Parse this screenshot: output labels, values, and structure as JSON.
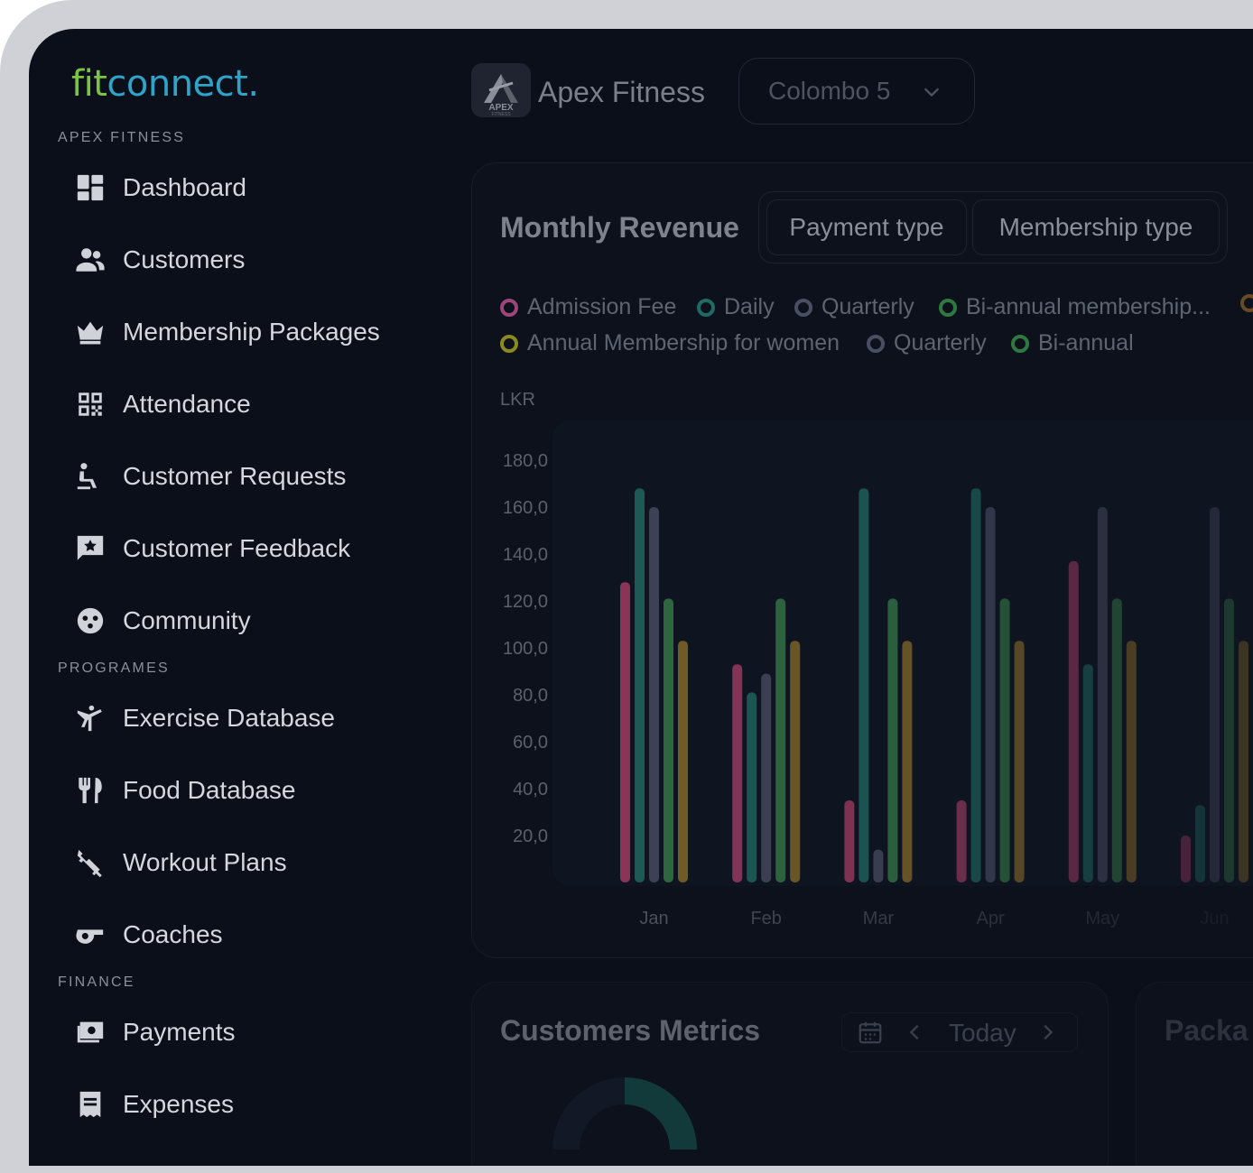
{
  "sidebar": {
    "logo_fit": "fit",
    "logo_connect": "connect.",
    "sections": [
      {
        "label": "APEX FITNESS"
      },
      {
        "label": "PROGRAMES"
      },
      {
        "label": "FINANCE"
      }
    ],
    "items": [
      {
        "label": "Dashboard",
        "icon": "dashboard-icon"
      },
      {
        "label": "Customers",
        "icon": "people-icon"
      },
      {
        "label": "Membership Packages",
        "icon": "crown-icon"
      },
      {
        "label": "Attendance",
        "icon": "qr-code-icon"
      },
      {
        "label": "Customer Requests",
        "icon": "seat-person-icon"
      },
      {
        "label": "Customer Feedback",
        "icon": "feedback-star-icon"
      },
      {
        "label": "Community",
        "icon": "community-icon"
      },
      {
        "label": "Exercise Database",
        "icon": "exercise-icon"
      },
      {
        "label": "Food Database",
        "icon": "cutlery-icon"
      },
      {
        "label": "Workout Plans",
        "icon": "dumbbell-icon"
      },
      {
        "label": "Coaches",
        "icon": "whistle-icon"
      },
      {
        "label": "Payments",
        "icon": "cash-icon"
      },
      {
        "label": "Expenses",
        "icon": "receipt-icon"
      }
    ]
  },
  "header": {
    "brand_name": "Apex Fitness",
    "brand_logo_text": "APEX",
    "brand_logo_sub": "FITNESS",
    "branch": "Colombo 5"
  },
  "revenue": {
    "title": "Monthly Revenue",
    "tabs": [
      "Payment type",
      "Membership type"
    ],
    "unit": "LKR"
  },
  "metrics": {
    "title": "Customers Metrics",
    "date_label": "Today",
    "packages_title": "Packa"
  },
  "colors": {
    "admission": "#7a2d4d",
    "daily": "#1a4a48",
    "quarterly": "#3b3e52",
    "biannual_membership": "#2b5a3a",
    "annual_women": "#6a5a22",
    "quarterly_2": "#3b3e52",
    "biannual": "#2b5a3a",
    "extra": "#6a4a22"
  },
  "chart_data": {
    "type": "bar",
    "ylabel": "LKR",
    "ylim": [
      0,
      180
    ],
    "y_ticks": [
      "20,0",
      "40,0",
      "60,0",
      "80,0",
      "100,0",
      "120,0",
      "140,0",
      "160,0",
      "180,0"
    ],
    "categories": [
      "Jan",
      "Feb",
      "Mar",
      "Apr",
      "May",
      "Jun"
    ],
    "legend": [
      {
        "name": "Admission Fee",
        "color": "#a0457a"
      },
      {
        "name": "Daily",
        "color": "#1f6a66"
      },
      {
        "name": "Quarterly",
        "color": "#4a4e62"
      },
      {
        "name": "Bi-annual membership...",
        "color": "#2e7a3e"
      },
      {
        "name": "Annual Membership for women",
        "color": "#8a8a1e"
      },
      {
        "name": "Quarterly",
        "color": "#4a4e62"
      },
      {
        "name": "Bi-annual",
        "color": "#2e7a3e"
      }
    ],
    "series": [
      {
        "name": "Admission Fee",
        "color": "#8a3558",
        "values": [
          128,
          93,
          35,
          35,
          137,
          20
        ]
      },
      {
        "name": "Daily",
        "color": "#1d5a56",
        "values": [
          168,
          81,
          168,
          168,
          93,
          33
        ]
      },
      {
        "name": "Quarterly",
        "color": "#3e4155",
        "values": [
          160,
          89,
          14,
          160,
          160,
          160
        ]
      },
      {
        "name": "Bi-annual membership...",
        "color": "#2e6640",
        "values": [
          121,
          121,
          121,
          121,
          121,
          121
        ]
      },
      {
        "name": "Annual Membership for women",
        "color": "#6f5a28",
        "values": [
          103,
          103,
          103,
          103,
          103,
          103
        ]
      }
    ]
  }
}
